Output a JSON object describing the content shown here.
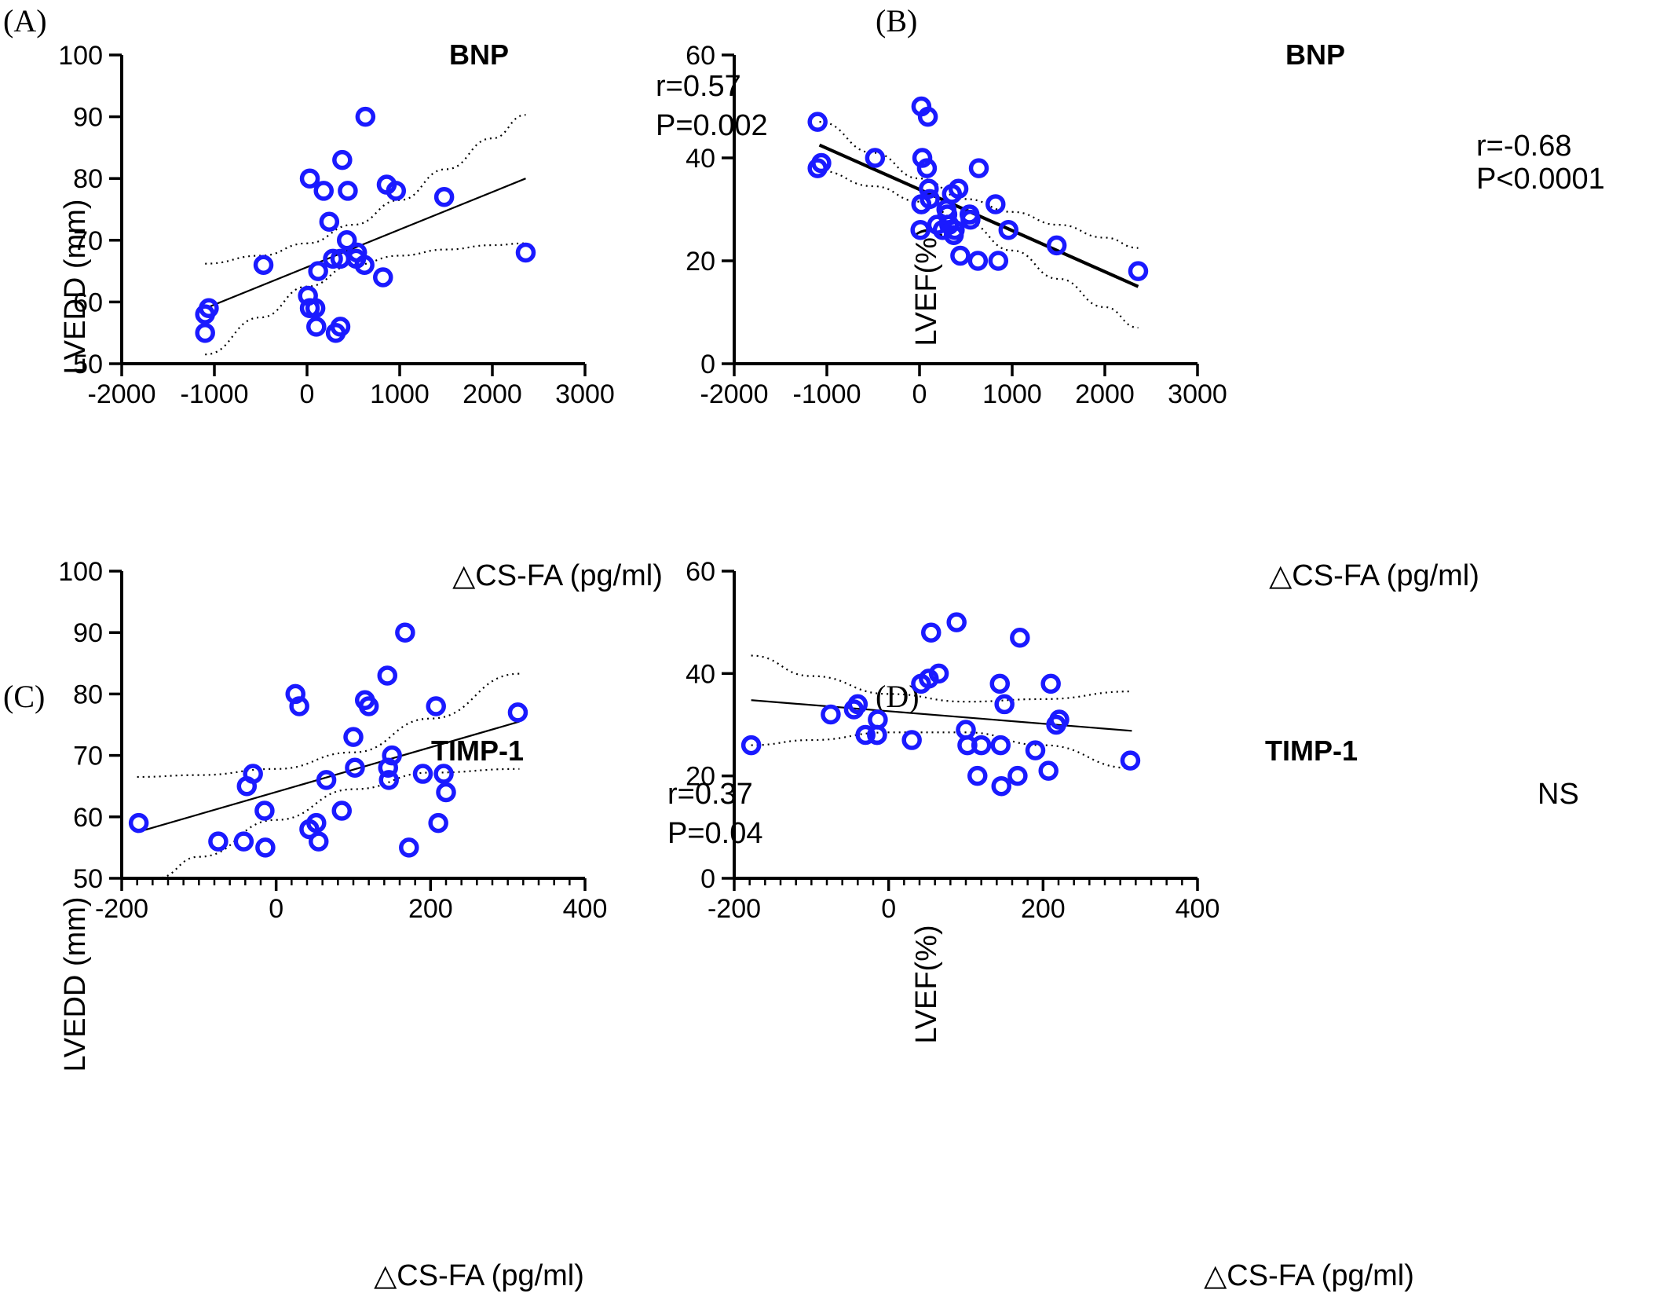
{
  "colors": {
    "points": "#1a1aff",
    "line": "#000000"
  },
  "chart_data": [
    {
      "panel": "(A)",
      "type": "scatter",
      "title": "BNP",
      "xlabel": "△CS-FA (pg/ml)",
      "ylabel": "LVEDD (mm)",
      "xlim": [
        -2000,
        3000
      ],
      "ylim": [
        50,
        100
      ],
      "xticks": [
        -2000,
        -1000,
        0,
        1000,
        2000,
        3000
      ],
      "yticks": [
        50,
        60,
        70,
        80,
        90,
        100
      ],
      "annotation": [
        "r=0.57",
        "P=0.002"
      ],
      "fit": {
        "x": [
          -1060,
          2360
        ],
        "y": [
          59.2,
          80.0
        ]
      },
      "ci_upper": {
        "x": [
          -1100,
          -500,
          0,
          500,
          1000,
          1500,
          2000,
          2360
        ],
        "y": [
          66.2,
          67.5,
          69.5,
          72.5,
          76.5,
          81.5,
          86.5,
          90.3
        ]
      },
      "ci_lower": {
        "x": [
          -1100,
          -500,
          0,
          500,
          1000,
          1500,
          2000,
          2360
        ],
        "y": [
          51.5,
          57.5,
          62.5,
          66.0,
          67.5,
          68.5,
          69.2,
          69.5
        ]
      },
      "points": {
        "x": [
          -1100,
          -1100,
          -1060,
          -470,
          30,
          10,
          30,
          90,
          100,
          120,
          180,
          240,
          280,
          310,
          360,
          360,
          380,
          430,
          440,
          540,
          530,
          620,
          630,
          820,
          860,
          960,
          1480,
          2360
        ],
        "y": [
          58,
          55,
          59,
          66,
          80,
          61,
          59,
          59,
          56,
          65,
          78,
          73,
          67,
          55,
          56,
          67,
          83,
          70,
          78,
          68,
          67,
          66,
          90,
          64,
          79,
          78,
          77,
          68
        ]
      }
    },
    {
      "panel": "(B)",
      "type": "scatter",
      "title": "BNP",
      "xlabel": "△CS-FA (pg/ml)",
      "ylabel": "LVEF(%)",
      "xlim": [
        -2000,
        3000
      ],
      "ylim": [
        0,
        60
      ],
      "xticks": [
        -2000,
        -1000,
        0,
        1000,
        2000,
        3000
      ],
      "yticks": [
        0,
        20,
        40,
        60
      ],
      "annotation": [
        "r=-0.68",
        "P<0.0001"
      ],
      "fit": {
        "x": [
          -1080,
          2360
        ],
        "y": [
          42.5,
          15.0
        ]
      },
      "ci_upper": {
        "x": [
          -1080,
          -500,
          0,
          500,
          1000,
          1500,
          2000,
          2360
        ],
        "y": [
          47.0,
          41.0,
          36.0,
          32.0,
          29.5,
          27.0,
          24.5,
          22.5
        ]
      },
      "ci_lower": {
        "x": [
          -1080,
          -500,
          0,
          500,
          1000,
          1500,
          2000,
          2360
        ],
        "y": [
          37.5,
          34.5,
          31.5,
          27.5,
          22.0,
          16.5,
          11.0,
          7.0
        ]
      },
      "points": {
        "x": [
          -1100,
          -1100,
          -1060,
          -480,
          20,
          30,
          20,
          10,
          20,
          80,
          90,
          100,
          110,
          190,
          250,
          290,
          300,
          320,
          350,
          370,
          380,
          420,
          440,
          540,
          550,
          630,
          640,
          820,
          850,
          960,
          1480,
          2360
        ],
        "y": [
          47,
          38,
          39,
          40,
          50,
          40,
          31,
          26,
          31,
          38,
          48,
          34,
          32,
          27,
          26,
          30,
          29,
          27,
          33,
          25,
          26,
          34,
          21,
          29,
          28,
          20,
          38,
          31,
          20,
          26,
          23,
          18
        ]
      }
    },
    {
      "panel": "(C)",
      "type": "scatter",
      "title": "TIMP-1",
      "xlabel": "△CS-FA (pg/ml)",
      "ylabel": "LVEDD (mm)",
      "xlim": [
        -200,
        400
      ],
      "ylim": [
        50,
        100
      ],
      "xticks": [
        -200,
        0,
        200,
        400
      ],
      "yticks": [
        50,
        60,
        70,
        80,
        90,
        100
      ],
      "annotation": [
        "r=0.37",
        "P=0.04"
      ],
      "fit": {
        "x": [
          -180,
          315
        ],
        "y": [
          57.5,
          75.5
        ]
      },
      "ci_upper": {
        "x": [
          -180,
          -100,
          0,
          100,
          200,
          315
        ],
        "y": [
          66.5,
          66.8,
          67.8,
          70.5,
          76.0,
          83.3
        ]
      },
      "ci_lower": {
        "x": [
          -155,
          -100,
          0,
          100,
          200,
          315
        ],
        "y": [
          50.0,
          53.5,
          59.5,
          64.5,
          67.2,
          67.8
        ]
      },
      "points": {
        "x": [
          -178,
          -75,
          -42,
          -38,
          -30,
          -15,
          -14,
          25,
          30,
          43,
          52,
          55,
          65,
          85,
          100,
          102,
          115,
          120,
          144,
          145,
          146,
          150,
          167,
          172,
          190,
          207,
          210,
          217,
          220,
          313
        ],
        "y": [
          59,
          56,
          56,
          65,
          67,
          61,
          55,
          80,
          78,
          58,
          59,
          56,
          66,
          61,
          73,
          68,
          79,
          78,
          83,
          68,
          66,
          70,
          90,
          55,
          67,
          78,
          59,
          67,
          64,
          77
        ]
      }
    },
    {
      "panel": "(D)",
      "type": "scatter",
      "title": "TIMP-1",
      "xlabel": "△CS-FA (pg/ml)",
      "ylabel": "LVEF(%)",
      "xlim": [
        -200,
        400
      ],
      "ylim": [
        0,
        60
      ],
      "xticks": [
        -200,
        0,
        200,
        400
      ],
      "yticks": [
        0,
        20,
        40,
        60
      ],
      "annotation": [
        "NS"
      ],
      "fit": {
        "x": [
          -178,
          315
        ],
        "y": [
          34.8,
          28.8
        ]
      },
      "ci_upper": {
        "x": [
          -178,
          -100,
          0,
          100,
          200,
          315
        ],
        "y": [
          43.5,
          39.5,
          36.0,
          34.5,
          35.0,
          36.5
        ]
      },
      "ci_lower": {
        "x": [
          -178,
          -100,
          0,
          100,
          200,
          315
        ],
        "y": [
          26.0,
          27.0,
          28.5,
          28.5,
          26.0,
          21.5
        ]
      },
      "points": {
        "x": [
          -178,
          -75,
          -45,
          -40,
          -30,
          -15,
          -14,
          30,
          42,
          52,
          55,
          65,
          88,
          100,
          102,
          115,
          120,
          144,
          145,
          146,
          150,
          167,
          170,
          190,
          207,
          210,
          217,
          221,
          313,
          -15
        ],
        "y": [
          26,
          32,
          33,
          34,
          28,
          28,
          31,
          27,
          38,
          39,
          48,
          40,
          50,
          29,
          26,
          20,
          26,
          38,
          26,
          18,
          34,
          20,
          47,
          25,
          21,
          38,
          30,
          31,
          23,
          28
        ]
      }
    }
  ]
}
